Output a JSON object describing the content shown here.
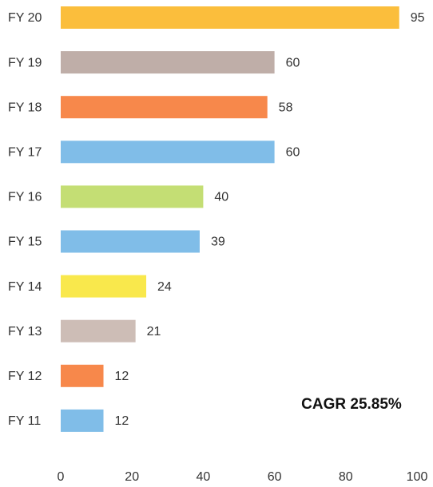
{
  "chart_data": {
    "type": "bar",
    "orientation": "horizontal",
    "categories": [
      "FY 20",
      "FY 19",
      "FY 18",
      "FY 17",
      "FY 16",
      "FY 15",
      "FY 14",
      "FY 13",
      "FY 12",
      "FY 11"
    ],
    "values": [
      95,
      60,
      58,
      60,
      40,
      39,
      24,
      21,
      12,
      12
    ],
    "colors": [
      "#fbbe3c",
      "#bfaea8",
      "#f7884b",
      "#80bde8",
      "#c4de74",
      "#80bde8",
      "#f9e84c",
      "#cdbdb6",
      "#f7884b",
      "#80bde8"
    ],
    "xlim": [
      0,
      100
    ],
    "xticks": [
      0,
      20,
      40,
      60,
      80,
      100
    ],
    "grid": false,
    "annotation": "CAGR 25.85%"
  }
}
